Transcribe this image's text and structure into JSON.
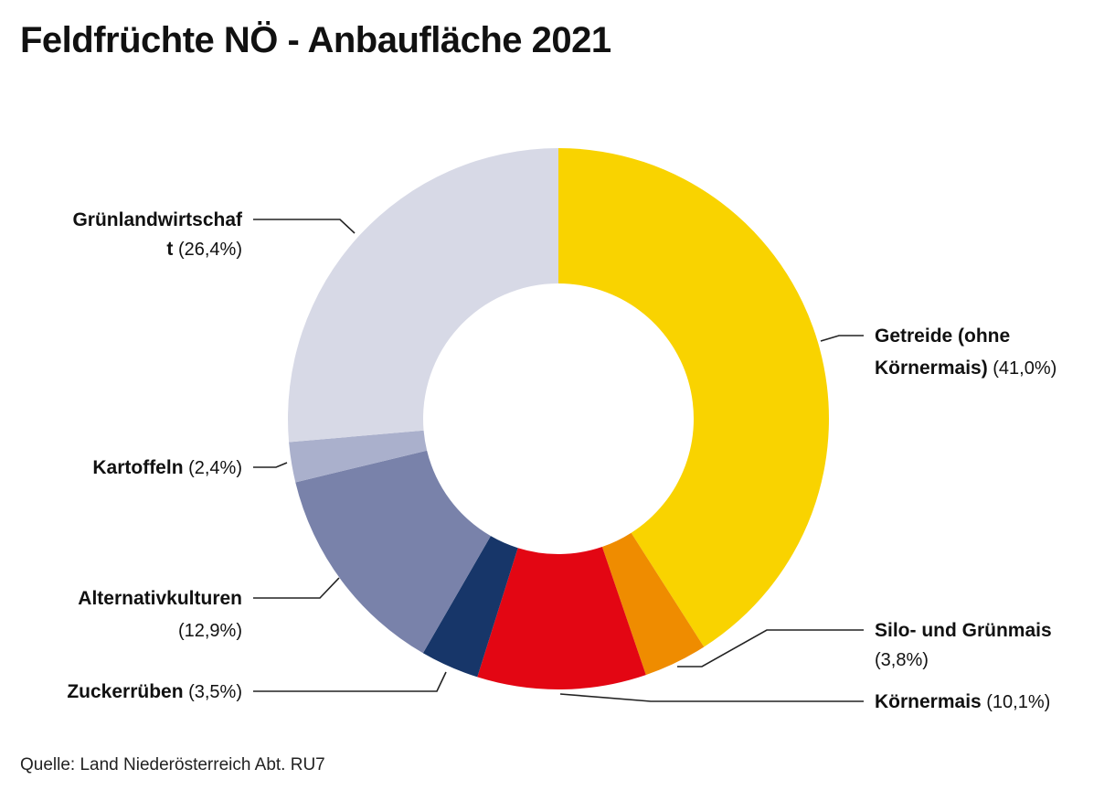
{
  "title": "Feldfrüchte NÖ - Anbaufläche 2021",
  "source": "Quelle: Land Niederösterreich Abt. RU7",
  "chart_data": {
    "type": "pie",
    "donut": true,
    "title": "Feldfrüchte NÖ - Anbaufläche 2021",
    "unit": "%",
    "slices": [
      {
        "label": "Getreide (ohne Körnermais)",
        "value": 41.0,
        "pct_text": "(41,0%)",
        "color": "#f9d300"
      },
      {
        "label": "Silo- und Grünmais",
        "value": 3.8,
        "pct_text": "(3,8%)",
        "color": "#ef8c00"
      },
      {
        "label": "Körnermais",
        "value": 10.1,
        "pct_text": "(10,1%)",
        "color": "#e30613"
      },
      {
        "label": "Zuckerrüben",
        "value": 3.5,
        "pct_text": "(3,5%)",
        "color": "#173669"
      },
      {
        "label": "Alternativkulturen",
        "value": 12.9,
        "pct_text": "(12,9%)",
        "color": "#7982aa"
      },
      {
        "label": "Kartoffeln",
        "value": 2.4,
        "pct_text": "(2,4%)",
        "color": "#aab0cc"
      },
      {
        "label": "Grünlandwirtschaft",
        "value": 26.4,
        "pct_text": "(26,4%)",
        "color": "#d7d9e6"
      }
    ],
    "label_lines": [
      [
        "Getreide (ohne",
        "Körnermais)"
      ],
      [
        "Silo- und Grünmais",
        ""
      ],
      [
        "Körnermais",
        ""
      ],
      [
        "Zuckerrüben",
        ""
      ],
      [
        "Alternativkulturen",
        ""
      ],
      [
        "Kartoffeln",
        ""
      ],
      [
        "Grünlandwirtschaf",
        "t"
      ]
    ]
  }
}
